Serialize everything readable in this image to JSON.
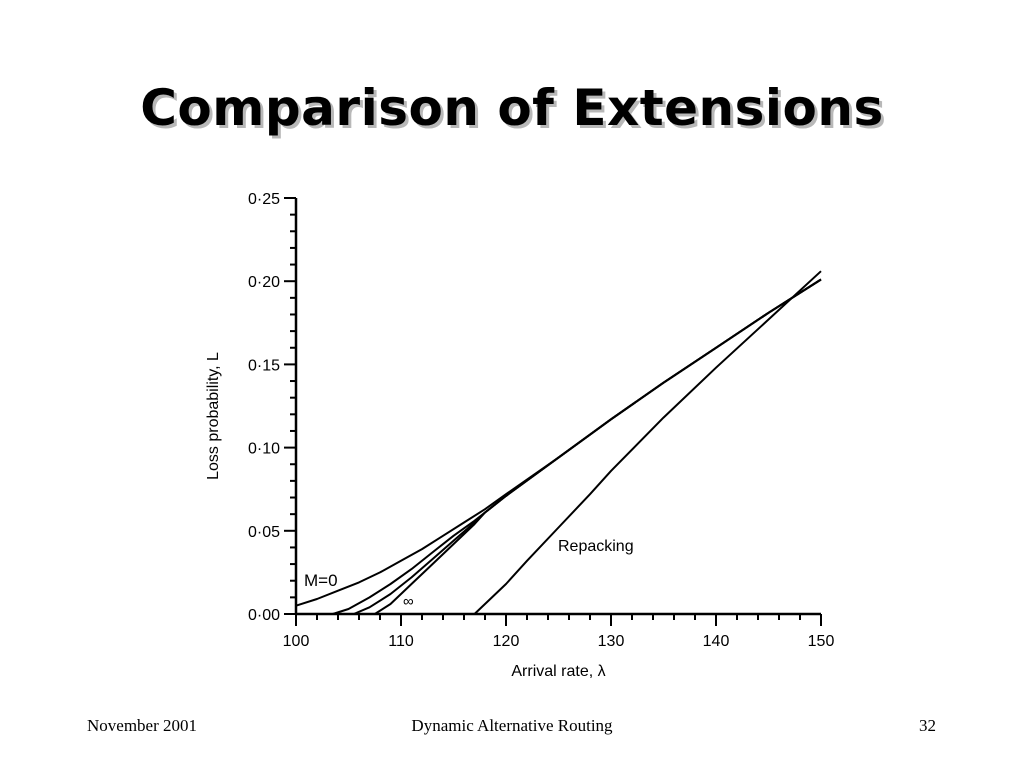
{
  "slide": {
    "title": "Comparison of Extensions",
    "footer_left": "November 2001",
    "footer_center": "Dynamic Alternative Routing",
    "footer_right": "32"
  },
  "chart_data": {
    "type": "line",
    "xlabel": "Arrival rate, λ",
    "ylabel": "Loss probability, L",
    "xlim": [
      100,
      150
    ],
    "ylim": [
      0,
      0.25
    ],
    "x_ticks": [
      100,
      110,
      120,
      130,
      140,
      150
    ],
    "x_tick_labels": [
      "100",
      "110",
      "120",
      "130",
      "140",
      "150"
    ],
    "y_ticks": [
      0,
      0.05,
      0.1,
      0.15,
      0.2,
      0.25
    ],
    "y_tick_labels": [
      "0·00",
      "0·05",
      "0·10",
      "0·15",
      "0·20",
      "0·25"
    ],
    "grid": false,
    "series": [
      {
        "name": "M=0",
        "x": [
          100,
          102,
          104,
          106,
          108,
          110,
          112,
          114,
          116,
          118,
          120,
          125,
          130,
          135,
          140,
          145,
          150
        ],
        "y": [
          0.005,
          0.009,
          0.014,
          0.019,
          0.025,
          0.032,
          0.039,
          0.047,
          0.055,
          0.063,
          0.072,
          0.094,
          0.117,
          0.139,
          0.16,
          0.181,
          0.201
        ]
      },
      {
        "name": "",
        "x": [
          103.5,
          105,
          107,
          109,
          111,
          113,
          115,
          117,
          118,
          120,
          125,
          130,
          135,
          140,
          145,
          150
        ],
        "y": [
          0.0,
          0.003,
          0.01,
          0.018,
          0.027,
          0.037,
          0.047,
          0.056,
          0.061,
          0.071,
          0.094,
          0.117,
          0.139,
          0.16,
          0.181,
          0.201
        ]
      },
      {
        "name": "",
        "x": [
          105.5,
          107,
          109,
          111,
          113,
          115,
          117,
          118,
          120,
          125,
          130,
          135,
          140,
          145,
          150
        ],
        "y": [
          0.0,
          0.004,
          0.012,
          0.022,
          0.033,
          0.044,
          0.055,
          0.061,
          0.071,
          0.094,
          0.117,
          0.139,
          0.16,
          0.181,
          0.201
        ]
      },
      {
        "name": "∞",
        "x": [
          107.5,
          109,
          111,
          113,
          115,
          117,
          118,
          120,
          125,
          130,
          135,
          140,
          145,
          150
        ],
        "y": [
          0.0,
          0.006,
          0.018,
          0.03,
          0.042,
          0.054,
          0.061,
          0.071,
          0.094,
          0.117,
          0.139,
          0.16,
          0.181,
          0.201
        ]
      },
      {
        "name": "Repacking",
        "x": [
          117,
          118,
          120,
          122,
          125,
          128,
          130,
          135,
          140,
          145,
          150
        ],
        "y": [
          0.0,
          0.006,
          0.018,
          0.032,
          0.052,
          0.072,
          0.086,
          0.118,
          0.148,
          0.177,
          0.206
        ]
      }
    ],
    "annotations": [
      "M=0",
      "∞",
      "Repacking"
    ]
  }
}
